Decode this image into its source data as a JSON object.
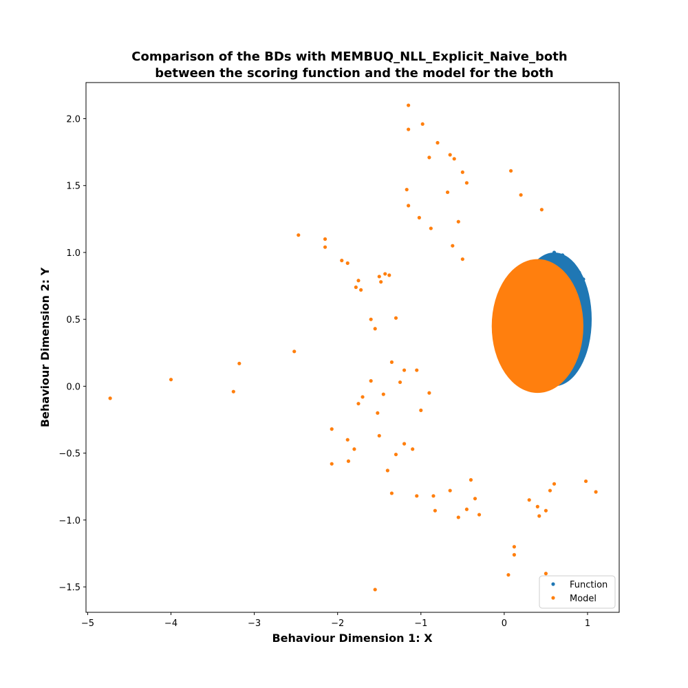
{
  "chart_data": {
    "type": "scatter",
    "title_line1": "Comparison of the BDs with MEMBUQ_NLL_Explicit_Naive_both",
    "title_line2": "between the scoring function and the model for the both",
    "xlabel": "Behaviour Dimension 1: X",
    "ylabel": "Behaviour Dimension 2: Y",
    "xlim": [
      -5.02,
      1.38
    ],
    "ylim": [
      -1.69,
      2.27
    ],
    "xticks": [
      -5,
      -4,
      -3,
      -2,
      -1,
      0,
      1
    ],
    "xtick_labels": [
      "−5",
      "−4",
      "−3",
      "−2",
      "−1",
      "0",
      "1"
    ],
    "yticks": [
      -1.5,
      -1.0,
      -0.5,
      0.0,
      0.5,
      1.0,
      1.5,
      2.0
    ],
    "ytick_labels": [
      "−1.5",
      "−1.0",
      "−0.5",
      "0.0",
      "0.5",
      "1.0",
      "1.5",
      "2.0"
    ],
    "grid": false,
    "legend_position": "lower-right",
    "series": [
      {
        "name": "Function",
        "color": "#1f77b4",
        "dense_region": {
          "cx": 0.6,
          "cy": 0.5,
          "rx": 0.45,
          "ry": 0.5
        },
        "points": [
          [
            0.6,
            1.0
          ],
          [
            0.7,
            0.98
          ],
          [
            0.8,
            0.9
          ],
          [
            0.95,
            0.7
          ],
          [
            1.0,
            0.6
          ],
          [
            1.0,
            0.35
          ],
          [
            0.98,
            0.3
          ],
          [
            0.95,
            0.8
          ],
          [
            0.9,
            0.85
          ]
        ]
      },
      {
        "name": "Model",
        "color": "#ff7f0e",
        "dense_region": {
          "cx": 0.4,
          "cy": 0.45,
          "rx": 0.55,
          "ry": 0.5
        },
        "points": [
          [
            -4.73,
            -0.09
          ],
          [
            -4.0,
            0.05
          ],
          [
            -3.25,
            -0.04
          ],
          [
            -3.18,
            0.17
          ],
          [
            -2.52,
            0.26
          ],
          [
            -2.47,
            1.13
          ],
          [
            -2.15,
            1.1
          ],
          [
            -2.15,
            1.04
          ],
          [
            -1.95,
            0.94
          ],
          [
            -1.88,
            0.92
          ],
          [
            -1.78,
            0.74
          ],
          [
            -1.75,
            0.79
          ],
          [
            -1.72,
            0.72
          ],
          [
            -1.6,
            0.5
          ],
          [
            -1.55,
            0.43
          ],
          [
            -1.5,
            0.82
          ],
          [
            -1.48,
            0.78
          ],
          [
            -1.43,
            0.84
          ],
          [
            -1.38,
            0.83
          ],
          [
            -1.3,
            0.51
          ],
          [
            -1.15,
            2.1
          ],
          [
            -1.15,
            1.92
          ],
          [
            -0.98,
            1.96
          ],
          [
            -1.17,
            1.47
          ],
          [
            -1.15,
            1.35
          ],
          [
            -1.02,
            1.26
          ],
          [
            -0.9,
            1.71
          ],
          [
            -0.8,
            1.82
          ],
          [
            -0.65,
            1.73
          ],
          [
            -0.6,
            1.7
          ],
          [
            -0.68,
            1.45
          ],
          [
            -0.5,
            1.6
          ],
          [
            -0.45,
            1.52
          ],
          [
            -0.55,
            1.23
          ],
          [
            -0.62,
            1.05
          ],
          [
            -0.5,
            0.95
          ],
          [
            -0.88,
            1.18
          ],
          [
            0.08,
            1.61
          ],
          [
            0.2,
            1.43
          ],
          [
            0.45,
            1.32
          ],
          [
            -2.07,
            -0.32
          ],
          [
            -2.07,
            -0.58
          ],
          [
            -1.88,
            -0.4
          ],
          [
            -1.87,
            -0.56
          ],
          [
            -1.8,
            -0.47
          ],
          [
            -1.75,
            -0.13
          ],
          [
            -1.7,
            -0.08
          ],
          [
            -1.52,
            -0.2
          ],
          [
            -1.5,
            -0.37
          ],
          [
            -1.4,
            -0.63
          ],
          [
            -1.35,
            -0.8
          ],
          [
            -1.3,
            -0.51
          ],
          [
            -1.2,
            -0.43
          ],
          [
            -1.1,
            -0.47
          ],
          [
            -1.05,
            -0.82
          ],
          [
            -0.85,
            -0.82
          ],
          [
            -0.83,
            -0.93
          ],
          [
            -0.65,
            -0.78
          ],
          [
            -0.55,
            -0.98
          ],
          [
            -0.45,
            -0.92
          ],
          [
            -0.4,
            -0.7
          ],
          [
            -0.3,
            -0.96
          ],
          [
            -0.35,
            -0.84
          ],
          [
            0.05,
            -1.41
          ],
          [
            0.12,
            -1.26
          ],
          [
            0.12,
            -1.2
          ],
          [
            0.5,
            -1.4
          ],
          [
            0.98,
            -0.71
          ],
          [
            1.1,
            -0.79
          ],
          [
            0.5,
            -0.93
          ],
          [
            0.4,
            -0.9
          ],
          [
            0.42,
            -0.97
          ],
          [
            0.55,
            -0.78
          ],
          [
            0.6,
            -0.73
          ],
          [
            0.3,
            -0.85
          ],
          [
            -1.55,
            -1.52
          ],
          [
            -1.2,
            0.12
          ],
          [
            -1.25,
            0.03
          ],
          [
            -1.35,
            0.18
          ],
          [
            -1.6,
            0.04
          ],
          [
            -1.45,
            -0.06
          ],
          [
            -1.05,
            0.12
          ],
          [
            -0.9,
            -0.05
          ],
          [
            -1.0,
            -0.18
          ]
        ]
      }
    ]
  }
}
